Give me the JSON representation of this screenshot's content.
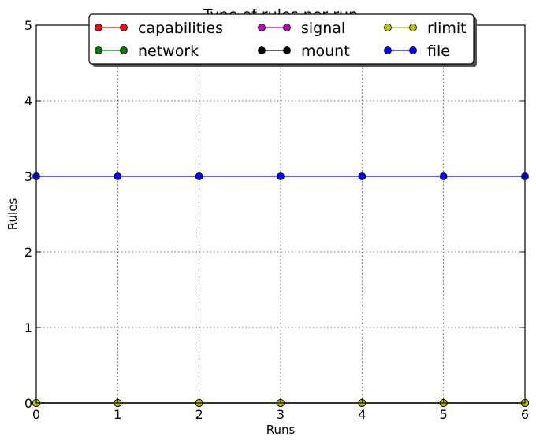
{
  "chart_data": {
    "type": "line",
    "title": "Type of rules per run",
    "xlabel": "Runs",
    "ylabel": "Rules",
    "xlim": [
      0,
      6
    ],
    "ylim": [
      0,
      5
    ],
    "xticks": [
      "0",
      "1",
      "2",
      "3",
      "4",
      "5",
      "6"
    ],
    "yticks": [
      "0",
      "1",
      "2",
      "3",
      "4",
      "5"
    ],
    "grid": true,
    "legend_position": "top-center",
    "x": [
      0,
      1,
      2,
      3,
      4,
      5,
      6
    ],
    "series": [
      {
        "name": "capabilities",
        "color": "#ff0000",
        "values": [
          0,
          0,
          0,
          0,
          0,
          0,
          0
        ]
      },
      {
        "name": "network",
        "color": "#008000",
        "values": [
          0,
          0,
          0,
          0,
          0,
          0,
          0
        ]
      },
      {
        "name": "signal",
        "color": "#bf00bf",
        "values": [
          0,
          0,
          0,
          0,
          0,
          0,
          0
        ]
      },
      {
        "name": "mount",
        "color": "#000000",
        "values": [
          0,
          0,
          0,
          0,
          0,
          0,
          0
        ]
      },
      {
        "name": "rlimit",
        "color": "#bfbf00",
        "values": [
          0,
          0,
          0,
          0,
          0,
          0,
          0
        ]
      },
      {
        "name": "file",
        "color": "#0000ff",
        "values": [
          3,
          3,
          3,
          3,
          3,
          3,
          3
        ]
      }
    ]
  }
}
